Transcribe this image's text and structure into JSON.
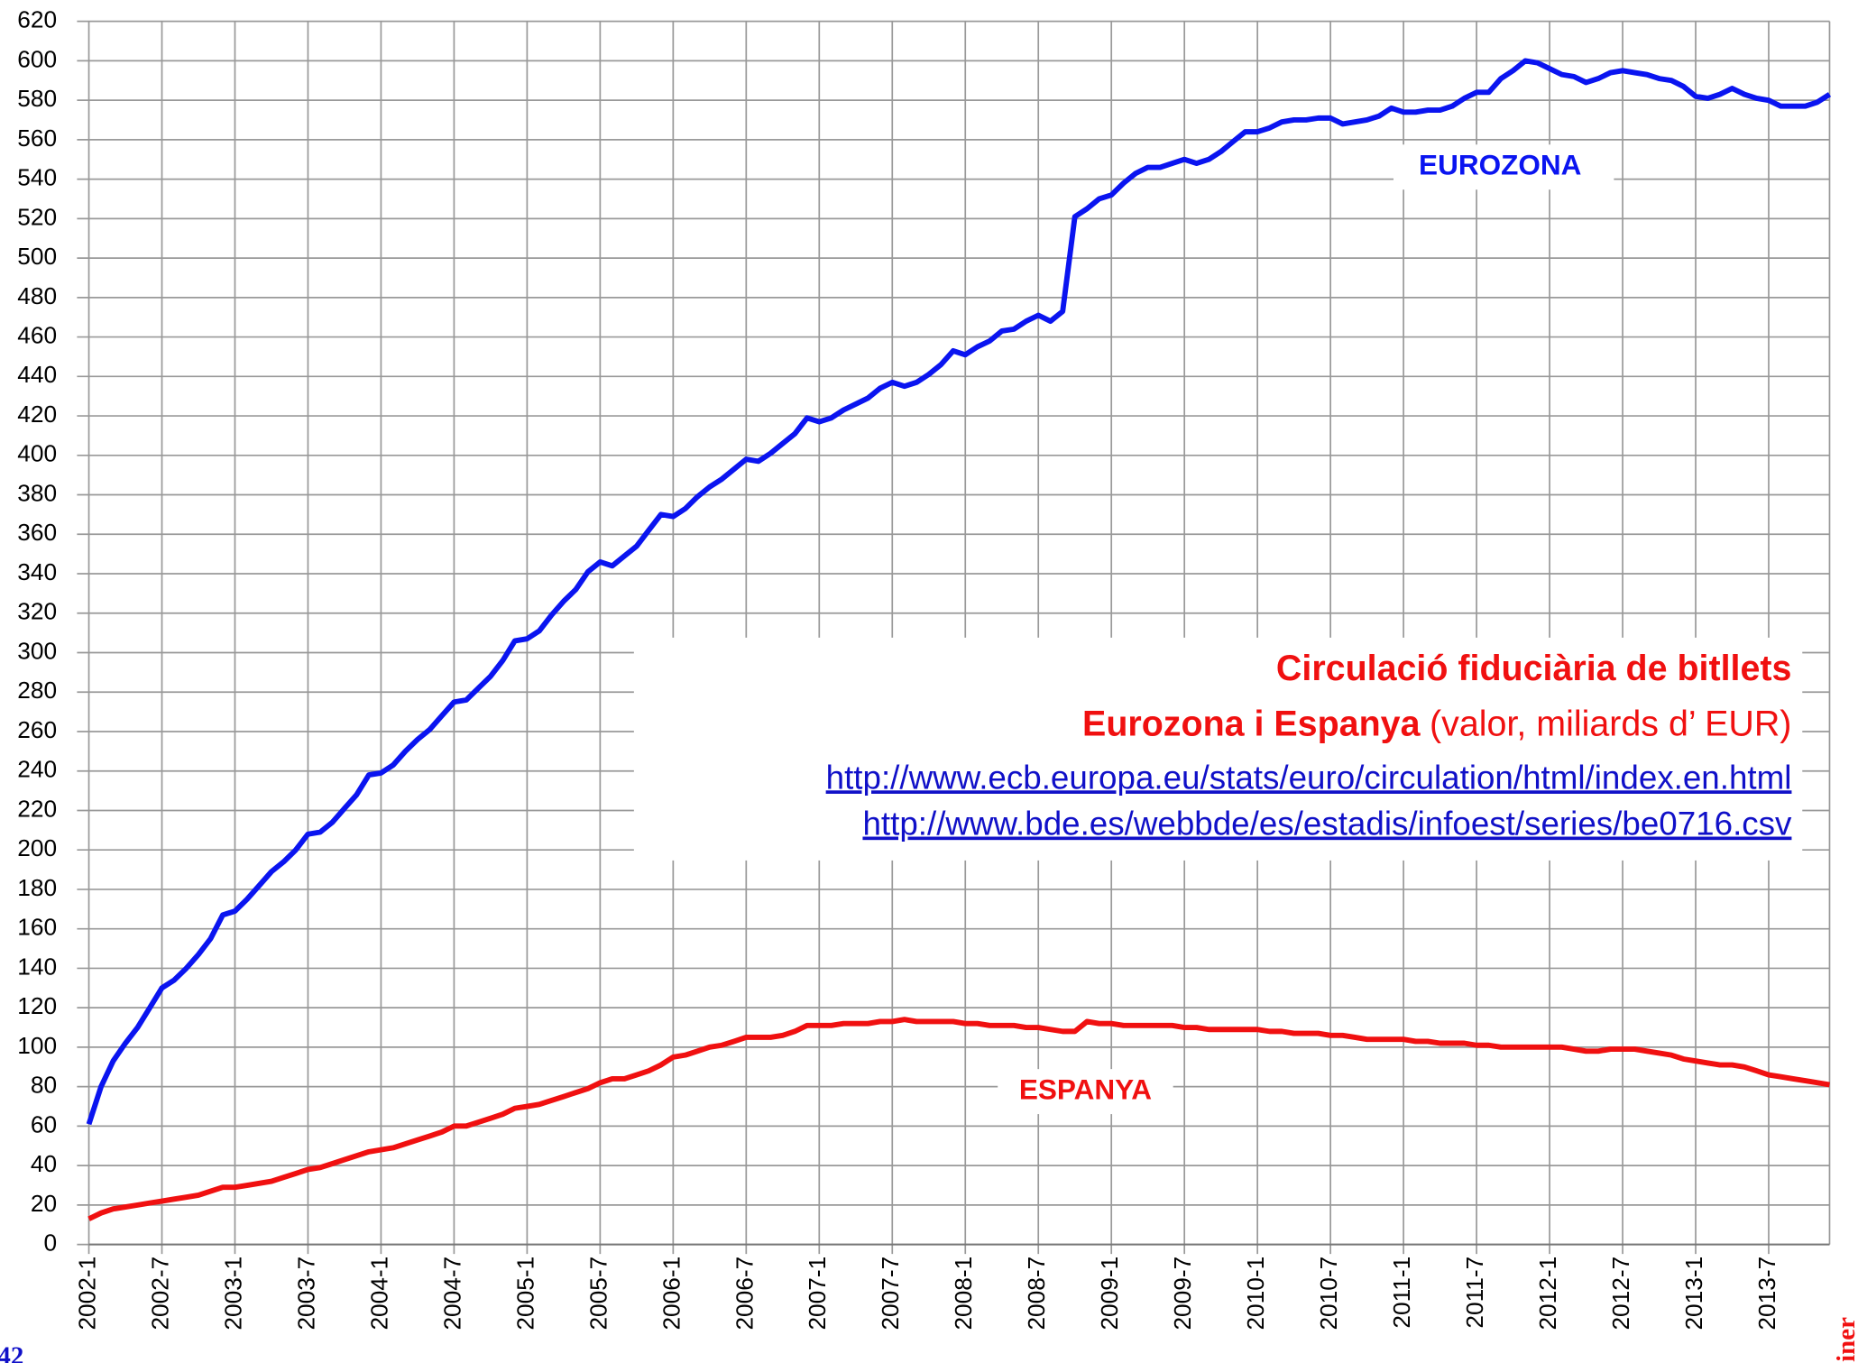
{
  "chart_data": {
    "type": "line",
    "title": "Circulació fiduciària de bitllets",
    "subtitle_bold": "Eurozona i Espanya",
    "subtitle": "(valor, miliards d’ EUR)",
    "links": [
      "http://www.ecb.europa.eu/stats/euro/circulation/html/index.en.html",
      "http://www.bde.es/webbde/es/estadis/infoest/series/be0716.csv"
    ],
    "annotations": [
      "EUROZONA",
      "ESPANYA"
    ],
    "page_number": "42",
    "footer": "Diner",
    "categories": [
      "2002-1",
      null,
      null,
      null,
      null,
      null,
      "2002-7",
      null,
      null,
      null,
      null,
      null,
      "2003-1",
      null,
      null,
      null,
      null,
      null,
      "2003-7",
      null,
      null,
      null,
      null,
      null,
      "2004-1",
      null,
      null,
      null,
      null,
      null,
      "2004-7",
      null,
      null,
      null,
      null,
      null,
      "2005-1",
      null,
      null,
      null,
      null,
      null,
      "2005-7",
      null,
      null,
      null,
      null,
      null,
      "2006-1",
      null,
      null,
      null,
      null,
      null,
      "2006-7",
      null,
      null,
      null,
      null,
      null,
      "2007-1",
      null,
      null,
      null,
      null,
      null,
      "2007-7",
      null,
      null,
      null,
      null,
      null,
      "2008-1",
      null,
      null,
      null,
      null,
      null,
      "2008-7",
      null,
      null,
      null,
      null,
      null,
      "2009-1",
      null,
      null,
      null,
      null,
      null,
      "2009-7",
      null,
      null,
      null,
      null,
      null,
      "2010-1",
      null,
      null,
      null,
      null,
      null,
      "2010-7",
      null,
      null,
      null,
      null,
      null,
      "2011-1",
      null,
      null,
      null,
      null,
      null,
      "2011-7",
      null,
      null,
      null,
      null,
      null,
      "2012-1",
      null,
      null,
      null,
      null,
      null,
      "2012-7",
      null,
      null,
      null,
      null,
      null,
      "2013-1",
      null,
      null,
      null,
      null,
      null,
      "2013-7",
      null,
      null,
      null,
      null,
      null
    ],
    "series": [
      {
        "name": "EUROZONA",
        "color": "#0a14f0",
        "values": [
          61,
          80,
          93,
          102,
          110,
          120,
          130,
          134,
          140,
          147,
          155,
          167,
          169,
          175,
          182,
          189,
          194,
          200,
          208,
          209,
          214,
          221,
          228,
          238,
          239,
          243,
          250,
          256,
          261,
          268,
          275,
          276,
          282,
          288,
          296,
          306,
          307,
          311,
          319,
          326,
          332,
          341,
          346,
          344,
          349,
          354,
          362,
          370,
          369,
          373,
          379,
          384,
          388,
          393,
          398,
          397,
          401,
          406,
          411,
          419,
          417,
          419,
          423,
          426,
          429,
          434,
          437,
          435,
          437,
          441,
          446,
          453,
          451,
          455,
          458,
          463,
          464,
          468,
          471,
          468,
          473,
          521,
          525,
          530,
          532,
          538,
          543,
          546,
          546,
          548,
          550,
          548,
          550,
          554,
          559,
          564,
          564,
          566,
          569,
          570,
          570,
          571,
          571,
          568,
          569,
          570,
          572,
          576,
          574,
          574,
          575,
          575,
          577,
          581,
          584,
          584,
          591,
          595,
          600,
          599,
          596,
          593,
          592,
          589,
          591,
          594,
          595,
          594,
          593,
          591,
          590,
          587,
          582,
          581,
          583,
          586,
          583,
          581,
          580,
          577,
          577,
          577,
          579,
          583
        ]
      },
      {
        "name": "ESPANYA",
        "color": "#f01010",
        "values": [
          13,
          16,
          18,
          19,
          20,
          21,
          22,
          23,
          24,
          25,
          27,
          29,
          29,
          30,
          31,
          32,
          34,
          36,
          38,
          39,
          41,
          43,
          45,
          47,
          48,
          49,
          51,
          53,
          55,
          57,
          60,
          60,
          62,
          64,
          66,
          69,
          70,
          71,
          73,
          75,
          77,
          79,
          82,
          84,
          84,
          86,
          88,
          91,
          95,
          96,
          98,
          100,
          101,
          103,
          105,
          105,
          105,
          106,
          108,
          111,
          111,
          111,
          112,
          112,
          112,
          113,
          113,
          114,
          113,
          113,
          113,
          113,
          112,
          112,
          111,
          111,
          111,
          110,
          110,
          109,
          108,
          108,
          113,
          112,
          112,
          111,
          111,
          111,
          111,
          111,
          110,
          110,
          109,
          109,
          109,
          109,
          109,
          108,
          108,
          107,
          107,
          107,
          106,
          106,
          105,
          104,
          104,
          104,
          104,
          103,
          103,
          102,
          102,
          102,
          101,
          101,
          100,
          100,
          100,
          100,
          100,
          100,
          99,
          98,
          98,
          99,
          99,
          99,
          98,
          97,
          96,
          94,
          93,
          92,
          91,
          91,
          90,
          88,
          86,
          85,
          84,
          83,
          82,
          81
        ]
      }
    ],
    "ylim": [
      0,
      620
    ],
    "yticks": [
      0,
      20,
      40,
      60,
      80,
      100,
      120,
      140,
      160,
      180,
      200,
      220,
      240,
      260,
      280,
      300,
      320,
      340,
      360,
      380,
      400,
      420,
      440,
      460,
      480,
      500,
      520,
      540,
      560,
      580,
      600,
      620
    ],
    "grid": true
  }
}
